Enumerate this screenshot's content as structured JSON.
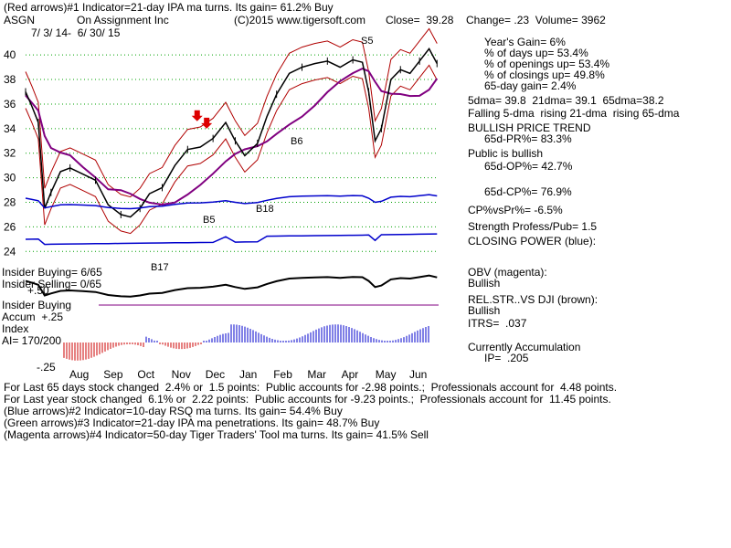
{
  "header": {
    "line1": "(Red arrows)#1 Indicator=21-day IPA ma turns. Its gain= 61.2% Buy",
    "ticker": "ASGN",
    "company": "On Assignment Inc",
    "copyright": "(C)2015 www.tigersoft.com",
    "close": "Close=  39.28",
    "change": "Change= .23  Volume= 3962",
    "daterange": "7/ 3/ 14-  6/ 30/ 15"
  },
  "stats": {
    "years_gain": "Year's Gain= 6%",
    "days_up": "% of days up= 53.4%",
    "openings_up": "% of openings up= 53.4%",
    "closings_up": "% of closings up= 49.8%",
    "day65_gain": "65-day gain= 2.4%",
    "dma": "5dma= 39.8  21dma= 39.1  65dma=38.2",
    "trend_line": "Falling 5-dma  rising 21-dma  rising 65-dma",
    "bullish_trend": "BULLISH PRICE TREND",
    "pr65": "65d-PR%= 83.3%",
    "public_bullish": "Public is bullish",
    "op65": "65d-OP%= 42.7%",
    "cp65": "65d-CP%= 76.9%",
    "cp_vs_pr": "CP%vsPr%= -6.5%",
    "strength": "Strength Profess/Pub= 1.5",
    "closing_power": "CLOSING POWER (blue):",
    "obv": "OBV (magenta):",
    "obv_value": "Bullish",
    "relstr": "REL.STR..VS DJI (brown):",
    "relstr_value": "Bullish",
    "itrs": "ITRS=  .037",
    "accum": "Currently Accumulation",
    "ip": "IP=  .205"
  },
  "left_labels": {
    "insider_buying_1": "Insider Buying= 6/65",
    "insider_selling": "Insider Selling= 0/65",
    "insider_buying_2": "Insider Buying",
    "plus50": "+.50",
    "accum_index": "Accum  +.25",
    "index": "Index",
    "ai": "AI= 170/200",
    "minus25": "-.25"
  },
  "footer": {
    "line1": "For Last 65 days stock changed  2.4% or  1.5 points:  Public accounts for -2.98 points.;  Professionals account for  4.48 points.",
    "line2": "For Last year stock changed  6.1% or  2.22 points:  Public accounts for -9.23 points.;  Professionals account for  11.45 points.",
    "line3": "(Blue arrows)#2 Indicator=10-day RSQ ma turns. Its gain= 54.4% Buy",
    "line4": "(Green arrows)#3 Indicator=21-day IPA ma penetrations. Its gain= 48.7% Buy",
    "line5": "(Magenta arrows)#4 Indicator=50-day Tiger Traders' Tool ma turns. Its gain= 41.5% Sell"
  },
  "colors": {
    "price": "#000000",
    "band": "#b00000",
    "ma": "#800080",
    "closing_power": "#0000cc",
    "obv": "#000000",
    "accum_pos": "#0000cc",
    "accum_neg": "#cc0000",
    "grid": "#00a000",
    "sell_arrow": "#dd0000",
    "buy_arrow": "#0033ff"
  },
  "chart_data": {
    "type": "line",
    "ticker": "ASGN",
    "x_ticks": [
      "Aug",
      "Sep",
      "Oct",
      "Nov",
      "Dec",
      "Jan",
      "Feb",
      "Mar",
      "Apr",
      "May",
      "Jun"
    ],
    "y_ticks": [
      40,
      38,
      36,
      34,
      32,
      30,
      28,
      26,
      24
    ],
    "ylim": [
      23.5,
      41.5
    ],
    "grid": true,
    "price_series": [
      {
        "x": 0,
        "y": 37.0
      },
      {
        "x": 4,
        "y": 35.8
      },
      {
        "x": 8,
        "y": 34.5
      },
      {
        "x": 12,
        "y": 27.5
      },
      {
        "x": 16,
        "y": 28.8
      },
      {
        "x": 22,
        "y": 30.5
      },
      {
        "x": 28,
        "y": 30.8
      },
      {
        "x": 36,
        "y": 30.3
      },
      {
        "x": 44,
        "y": 29.8
      },
      {
        "x": 52,
        "y": 27.8
      },
      {
        "x": 60,
        "y": 27.0
      },
      {
        "x": 66,
        "y": 26.8
      },
      {
        "x": 72,
        "y": 27.5
      },
      {
        "x": 78,
        "y": 28.7
      },
      {
        "x": 86,
        "y": 29.2
      },
      {
        "x": 94,
        "y": 31.0
      },
      {
        "x": 102,
        "y": 32.3
      },
      {
        "x": 110,
        "y": 32.5
      },
      {
        "x": 118,
        "y": 33.2
      },
      {
        "x": 126,
        "y": 34.5
      },
      {
        "x": 132,
        "y": 33.0
      },
      {
        "x": 138,
        "y": 31.8
      },
      {
        "x": 146,
        "y": 32.8
      },
      {
        "x": 152,
        "y": 35.0
      },
      {
        "x": 158,
        "y": 36.8
      },
      {
        "x": 166,
        "y": 38.5
      },
      {
        "x": 174,
        "y": 39.0
      },
      {
        "x": 182,
        "y": 39.3
      },
      {
        "x": 190,
        "y": 39.5
      },
      {
        "x": 198,
        "y": 39.0
      },
      {
        "x": 206,
        "y": 39.6
      },
      {
        "x": 212,
        "y": 39.4
      },
      {
        "x": 216,
        "y": 37.0
      },
      {
        "x": 220,
        "y": 33.0
      },
      {
        "x": 224,
        "y": 34.0
      },
      {
        "x": 230,
        "y": 38.0
      },
      {
        "x": 236,
        "y": 38.8
      },
      {
        "x": 242,
        "y": 38.5
      },
      {
        "x": 248,
        "y": 39.5
      },
      {
        "x": 254,
        "y": 40.5
      },
      {
        "x": 259,
        "y": 39.3
      }
    ],
    "sell_arrows": [
      {
        "label": "",
        "x": 108,
        "y": 34.6
      },
      {
        "label": "",
        "x": 114,
        "y": 34.0
      }
    ],
    "signal_labels": [
      "S5",
      "B5",
      "B17",
      "B18",
      "B6"
    ],
    "x_range": [
      0,
      260
    ]
  }
}
